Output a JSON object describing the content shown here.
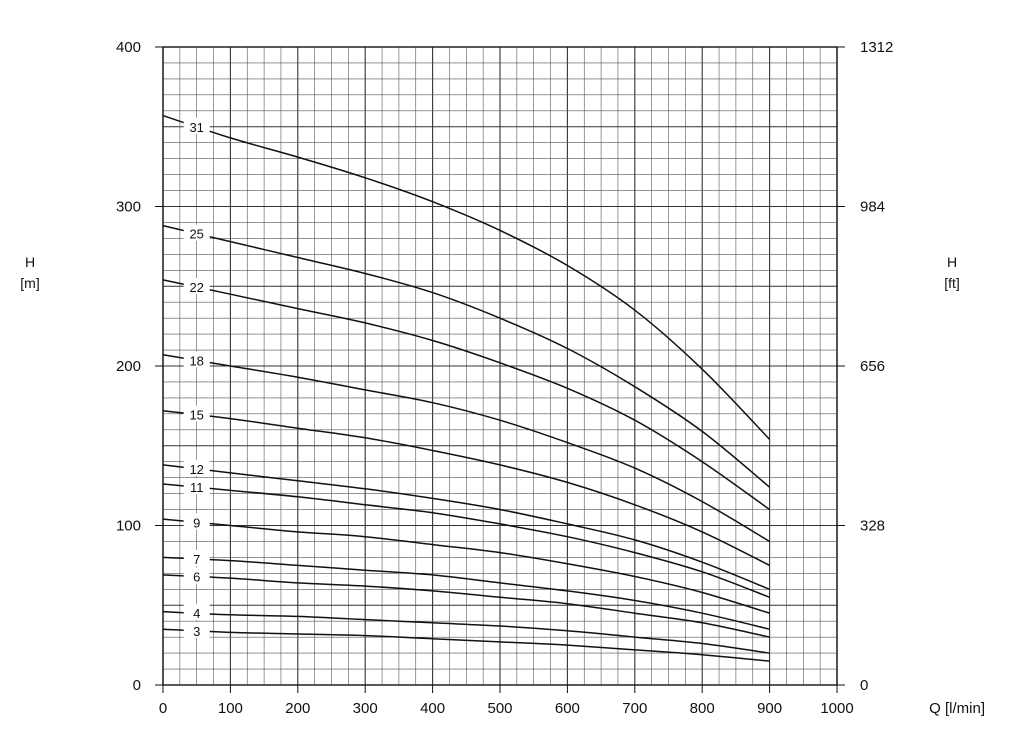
{
  "chart_data": {
    "type": "line",
    "xlabel": "Q [l/min]",
    "ylabel_left": {
      "line1": "H",
      "line2": "[m]"
    },
    "ylabel_right": {
      "line1": "H",
      "line2": "[ft]"
    },
    "xlim": [
      0,
      1000
    ],
    "ylim": [
      0,
      400
    ],
    "x_ticks": [
      "0",
      "100",
      "200",
      "300",
      "400",
      "500",
      "600",
      "700",
      "800",
      "900",
      "1000"
    ],
    "y_ticks_left": [
      "0",
      "100",
      "200",
      "300",
      "400"
    ],
    "y_ticks_right": [
      "0",
      "328",
      "656",
      "984",
      "1312"
    ],
    "grid": true,
    "series": [
      {
        "name": "31",
        "label_q": 50,
        "x": [
          0,
          100,
          200,
          300,
          400,
          500,
          600,
          700,
          800,
          900
        ],
        "y": [
          357,
          343,
          331,
          318,
          303,
          285,
          263,
          235,
          198,
          154
        ]
      },
      {
        "name": "25",
        "label_q": 50,
        "x": [
          0,
          100,
          200,
          300,
          400,
          500,
          600,
          700,
          800,
          900
        ],
        "y": [
          288,
          278,
          268,
          258,
          246,
          230,
          211,
          187,
          159,
          124
        ]
      },
      {
        "name": "22",
        "label_q": 50,
        "x": [
          0,
          100,
          200,
          300,
          400,
          500,
          600,
          700,
          800,
          900
        ],
        "y": [
          254,
          245,
          236,
          227,
          216,
          202,
          186,
          166,
          140,
          110
        ]
      },
      {
        "name": "18",
        "label_q": 50,
        "x": [
          0,
          100,
          200,
          300,
          400,
          500,
          600,
          700,
          800,
          900
        ],
        "y": [
          207,
          200,
          193,
          185,
          177,
          166,
          152,
          136,
          115,
          90
        ]
      },
      {
        "name": "15",
        "label_q": 50,
        "x": [
          0,
          100,
          200,
          300,
          400,
          500,
          600,
          700,
          800,
          900
        ],
        "y": [
          172,
          167,
          161,
          155,
          147,
          138,
          127,
          113,
          96,
          75
        ]
      },
      {
        "name": "12",
        "label_q": 50,
        "x": [
          0,
          100,
          200,
          300,
          400,
          500,
          600,
          700,
          800,
          900
        ],
        "y": [
          138,
          133,
          128,
          123,
          117,
          110,
          101,
          91,
          77,
          60
        ]
      },
      {
        "name": "11",
        "label_q": 50,
        "x": [
          0,
          100,
          200,
          300,
          400,
          500,
          600,
          700,
          800,
          900
        ],
        "y": [
          126,
          122,
          118,
          113,
          108,
          101,
          93,
          83,
          71,
          55
        ]
      },
      {
        "name": "9",
        "label_q": 50,
        "x": [
          0,
          100,
          200,
          300,
          400,
          500,
          600,
          700,
          800,
          900
        ],
        "y": [
          104,
          100,
          96,
          93,
          88,
          83,
          76,
          68,
          58,
          45
        ]
      },
      {
        "name": "7",
        "label_q": 50,
        "x": [
          0,
          100,
          200,
          300,
          400,
          500,
          600,
          700,
          800,
          900
        ],
        "y": [
          80,
          78,
          75,
          72,
          69,
          64,
          59,
          53,
          45,
          35
        ]
      },
      {
        "name": "6",
        "label_q": 50,
        "x": [
          0,
          100,
          200,
          300,
          400,
          500,
          600,
          700,
          800,
          900
        ],
        "y": [
          69,
          67,
          64,
          62,
          59,
          55,
          51,
          45,
          39,
          30
        ]
      },
      {
        "name": "4",
        "label_q": 50,
        "x": [
          0,
          100,
          200,
          300,
          400,
          500,
          600,
          700,
          800,
          900
        ],
        "y": [
          46,
          44,
          43,
          41,
          39,
          37,
          34,
          30,
          26,
          20
        ]
      },
      {
        "name": "3",
        "label_q": 50,
        "x": [
          0,
          100,
          200,
          300,
          400,
          500,
          600,
          700,
          800,
          900
        ],
        "y": [
          35,
          33,
          32,
          31,
          29,
          27,
          25,
          22,
          19,
          15
        ]
      }
    ]
  }
}
